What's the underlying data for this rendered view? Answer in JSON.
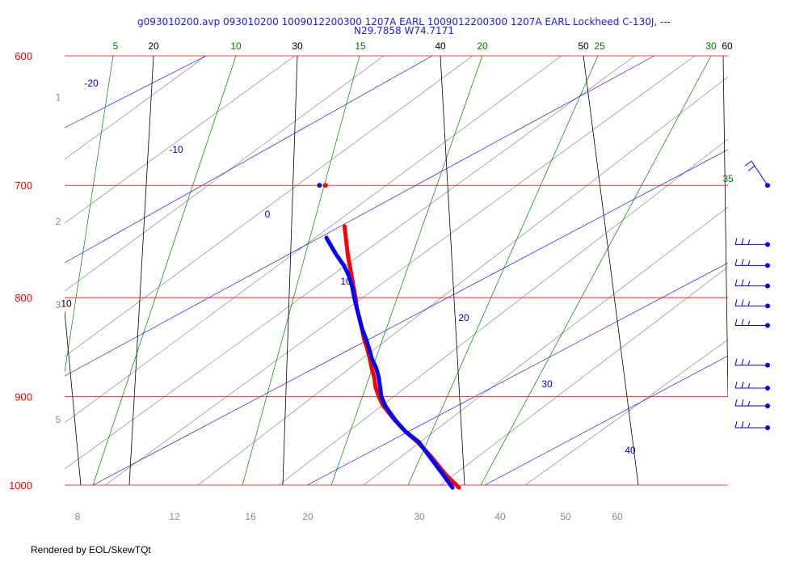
{
  "header": {
    "title_line1": "g093010200.avp 093010200 1009012200300 1207A EARL  1009012200300 1207A EARL Lockheed C-130J, ---",
    "title_line2": "N29.7858 W74.7171"
  },
  "footer": {
    "rendered_by": "Rendered by EOL/SkewTQt"
  },
  "chart_data": {
    "type": "skew-t",
    "pressure_axis": {
      "labels": [
        "600",
        "700",
        "800",
        "900",
        "1000"
      ],
      "values": [
        600,
        700,
        800,
        900,
        1000
      ],
      "range": [
        600,
        1000
      ],
      "color": "#ff0000"
    },
    "height_labels": {
      "labels": [
        "1",
        "2",
        "3",
        "5"
      ],
      "pressures": [
        630,
        730,
        806,
        924
      ]
    },
    "temperature_labels": {
      "labels": [
        "20",
        "30",
        "40",
        "50",
        "60"
      ],
      "values": [
        20,
        30,
        40,
        50,
        60
      ]
    },
    "isotherm_lines": [
      10,
      20,
      30,
      40,
      50,
      60
    ],
    "isotherm_left_label": "10",
    "dry_adiabat_labels": {
      "labels": [
        "-20",
        "-10",
        "0",
        "10",
        "20",
        "30",
        "40"
      ],
      "values": [
        -20,
        -10,
        0,
        10,
        20,
        30,
        40
      ],
      "color": "#0000cc"
    },
    "moist_adiabat_labels": {
      "labels": [
        "5",
        "10",
        "15",
        "20",
        "25",
        "30",
        "35"
      ],
      "values": [
        5,
        10,
        15,
        20,
        25,
        30,
        35
      ],
      "color": "#007700"
    },
    "mixing_ratio_labels": {
      "labels": [
        "8",
        "12",
        "16",
        "20",
        "30",
        "40",
        "50",
        "60"
      ],
      "values": [
        8,
        12,
        16,
        20,
        30,
        40,
        50,
        60
      ],
      "color": "#888888"
    },
    "series": [
      {
        "kind": "temperature",
        "color": "#ff0000",
        "points": [
          [
            1003,
            960
          ],
          [
            988,
            940
          ],
          [
            965,
            915
          ],
          [
            950,
            896
          ],
          [
            938,
            877
          ],
          [
            925,
            860
          ],
          [
            910,
            843
          ],
          [
            900,
            836
          ],
          [
            890,
            831
          ],
          [
            880,
            829
          ],
          [
            870,
            825
          ],
          [
            860,
            822
          ],
          [
            850,
            818
          ],
          [
            840,
            813
          ],
          [
            830,
            810
          ],
          [
            820,
            806
          ],
          [
            810,
            802
          ],
          [
            800,
            800
          ],
          [
            790,
            797
          ],
          [
            780,
            794
          ],
          [
            770,
            791
          ],
          [
            760,
            788
          ],
          [
            750,
            786
          ],
          [
            740,
            784
          ],
          [
            735,
            783
          ]
        ]
      },
      {
        "kind": "dewpoint",
        "color": "#0000ff",
        "points": [
          [
            1003,
            950
          ],
          [
            988,
            936
          ],
          [
            965,
            913
          ],
          [
            950,
            898
          ],
          [
            938,
            877
          ],
          [
            925,
            861
          ],
          [
            910,
            846
          ],
          [
            900,
            840
          ],
          [
            890,
            838
          ],
          [
            880,
            836
          ],
          [
            870,
            832
          ],
          [
            860,
            825
          ],
          [
            850,
            821
          ],
          [
            840,
            816
          ],
          [
            830,
            810
          ],
          [
            820,
            806
          ],
          [
            810,
            802
          ],
          [
            800,
            798
          ],
          [
            790,
            795
          ],
          [
            780,
            790
          ],
          [
            770,
            782
          ],
          [
            760,
            770
          ],
          [
            750,
            760
          ],
          [
            745,
            755
          ]
        ]
      }
    ],
    "isolated_points": [
      {
        "pressure": 700,
        "temperature": 753.5,
        "color": "#ff0000"
      },
      {
        "pressure": 700,
        "temperature": 744.2,
        "color": "#0000ff"
      }
    ],
    "wind_barbs": {
      "color": "#0000ff",
      "pressures": [
        700,
        751,
        770,
        789,
        808,
        827,
        867,
        891,
        910,
        934
      ]
    }
  }
}
